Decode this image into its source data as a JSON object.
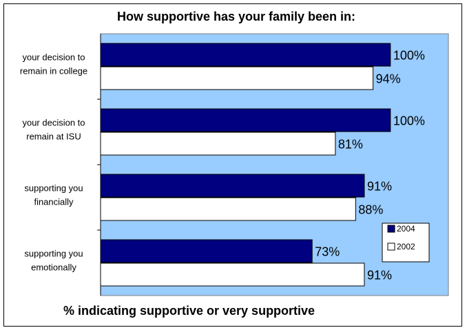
{
  "chart_data": {
    "type": "bar",
    "orientation": "horizontal",
    "title": "How supportive has your family been in:",
    "xlabel": "% indicating supportive or very supportive",
    "ylabel": "",
    "xlim": [
      0,
      120
    ],
    "grid": false,
    "legend_position": "right",
    "categories": [
      [
        "your decision to",
        "remain in college"
      ],
      [
        "your decision to",
        "remain at ISU"
      ],
      [
        "supporting you",
        "financially"
      ],
      [
        "supporting you",
        "emotionally"
      ]
    ],
    "series": [
      {
        "name": "2004",
        "values": [
          100,
          100,
          91,
          73
        ],
        "labels": [
          "100%",
          "100%",
          "91%",
          "73%"
        ],
        "color": "#000080"
      },
      {
        "name": "2002",
        "values": [
          94,
          81,
          88,
          91
        ],
        "labels": [
          "94%",
          "81%",
          "88%",
          "91%"
        ],
        "color": "#ffffff"
      }
    ],
    "plot_background": "#99ccff"
  }
}
